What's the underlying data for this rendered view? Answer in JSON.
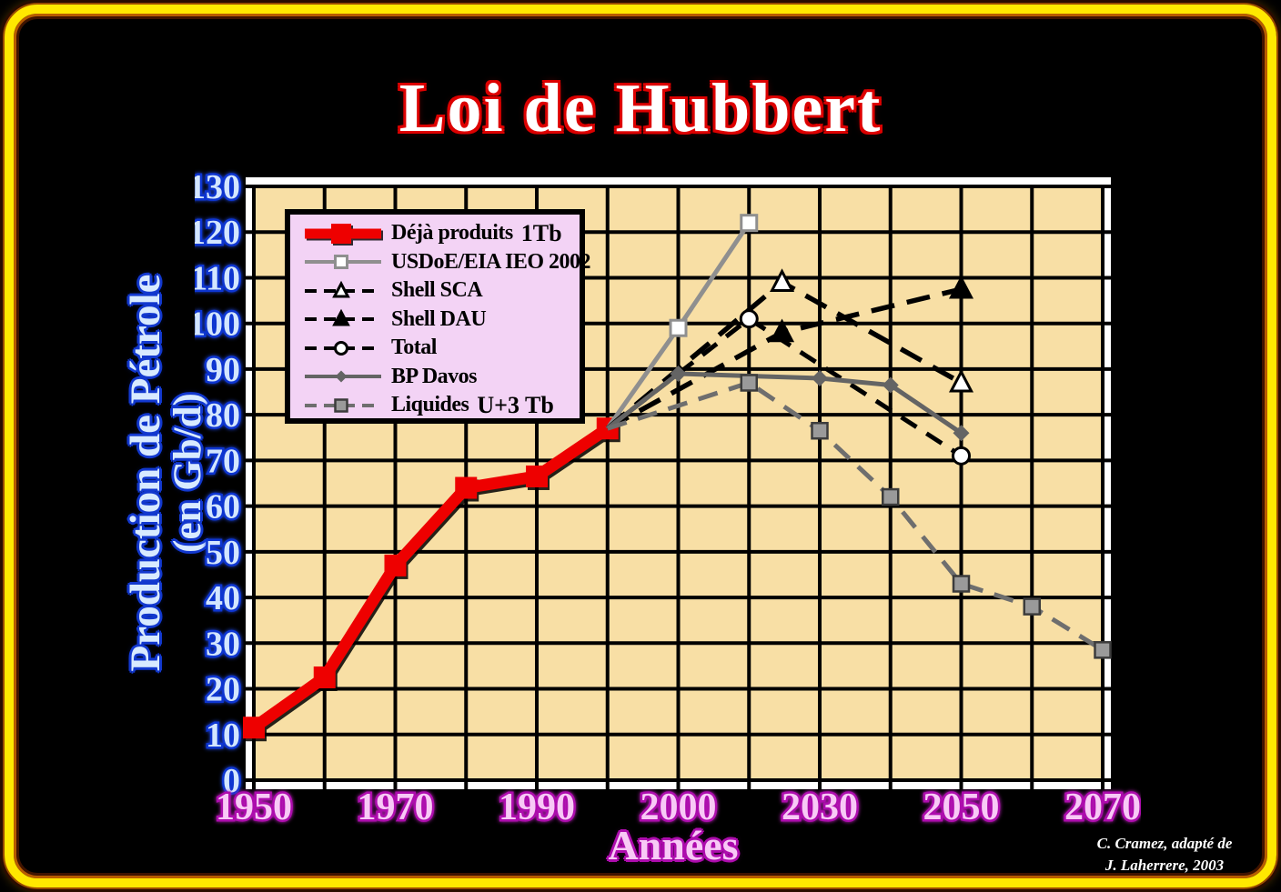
{
  "title": "Loi de Hubbert",
  "axes": {
    "y_title_line1": "Production de Pétrole",
    "y_title_line2": "(en Gb/d)",
    "x_title": "Années"
  },
  "attribution": {
    "line1": "C. Cramez, adapté de",
    "line2": "J. Laherrere, 2003"
  },
  "colors": {
    "background": "#000000",
    "frame_glow": "#ffe800",
    "plot_background": "#f8dfa5",
    "plot_frame": "#ffffff",
    "grid": "#000000",
    "legend_background": "#f3d3f5",
    "title_fill": "#ffffff",
    "title_outline": "#dd0000",
    "y_axis_text": "#d3e6ff",
    "y_axis_outline": "#0d35d0",
    "x_axis_text": "#f8c9f6",
    "x_axis_outline": "#ad0cad",
    "deja_produits_red": "#ee0000"
  },
  "chart_data": {
    "type": "line",
    "title": "Loi de Hubbert",
    "xlabel": "Années",
    "ylabel": "Production de Pétrole (en Gb/d)",
    "ylim": [
      0,
      130
    ],
    "y_ticks": [
      0,
      10,
      20,
      30,
      40,
      50,
      60,
      70,
      80,
      90,
      100,
      110,
      120,
      130
    ],
    "x_tick_years": [
      1950,
      1970,
      1990,
      2000,
      2030,
      2050,
      2070
    ],
    "x_gridline_years": [
      1950,
      1960,
      1970,
      1980,
      1990,
      1995,
      2000,
      2015,
      2030,
      2040,
      2050,
      2060,
      2070
    ],
    "grid": true,
    "legend_position": "upper-left",
    "series": [
      {
        "name": "Déjà produits",
        "annotation": "1Tb",
        "color": "#ee0000",
        "line_width": 13,
        "dash": null,
        "marker": "square",
        "marker_size": 24,
        "shadow": true,
        "skip_first_marker": false,
        "points": [
          [
            1950,
            11.5
          ],
          [
            1960,
            22.5
          ],
          [
            1970,
            47
          ],
          [
            1980,
            64
          ],
          [
            1990,
            66.5
          ],
          [
            1995,
            77
          ]
        ]
      },
      {
        "name": "USDoE/EIA IEO 2002",
        "annotation": null,
        "color": "#8f8f8f",
        "line_width": 5,
        "dash": null,
        "marker": "square-open",
        "marker_size": 17,
        "shadow": false,
        "skip_first_marker": true,
        "points": [
          [
            1995,
            77
          ],
          [
            2000,
            99
          ],
          [
            2015,
            122
          ]
        ]
      },
      {
        "name": "Shell SCA",
        "annotation": null,
        "color": "#000000",
        "line_width": 5.5,
        "dash": "26 14",
        "marker": "triangle-open",
        "marker_size": 24,
        "shadow": false,
        "skip_first_marker": true,
        "points": [
          [
            1995,
            77
          ],
          [
            2022,
            109
          ],
          [
            2050,
            87
          ]
        ]
      },
      {
        "name": "Shell DAU",
        "annotation": null,
        "color": "#000000",
        "line_width": 5.5,
        "dash": "26 14",
        "marker": "triangle",
        "marker_size": 24,
        "shadow": false,
        "skip_first_marker": true,
        "points": [
          [
            1995,
            77
          ],
          [
            2022,
            98
          ],
          [
            2050,
            107.5
          ]
        ]
      },
      {
        "name": "Total",
        "annotation": null,
        "color": "#000000",
        "line_width": 5,
        "dash": "20 13",
        "marker": "circle-open",
        "marker_size": 18,
        "shadow": false,
        "skip_first_marker": true,
        "points": [
          [
            1995,
            77
          ],
          [
            2015,
            101
          ],
          [
            2050,
            71
          ]
        ]
      },
      {
        "name": "BP Davos",
        "annotation": null,
        "color": "#646464",
        "line_width": 5,
        "dash": null,
        "marker": "diamond",
        "marker_size": 18,
        "shadow": false,
        "skip_first_marker": true,
        "points": [
          [
            1995,
            77
          ],
          [
            2000,
            89
          ],
          [
            2030,
            88
          ],
          [
            2040,
            86.5
          ],
          [
            2050,
            76
          ]
        ]
      },
      {
        "name": "Liquides",
        "annotation": "U+3 Tb",
        "color": "#6e6e6e",
        "line_width": 5,
        "dash": "22 13",
        "marker": "square-gray",
        "marker_size": 17,
        "shadow": false,
        "skip_first_marker": true,
        "points": [
          [
            1995,
            77
          ],
          [
            2015,
            87
          ],
          [
            2030,
            76.5
          ],
          [
            2040,
            62
          ],
          [
            2050,
            43
          ],
          [
            2060,
            38
          ],
          [
            2070,
            28.5
          ]
        ]
      }
    ]
  }
}
